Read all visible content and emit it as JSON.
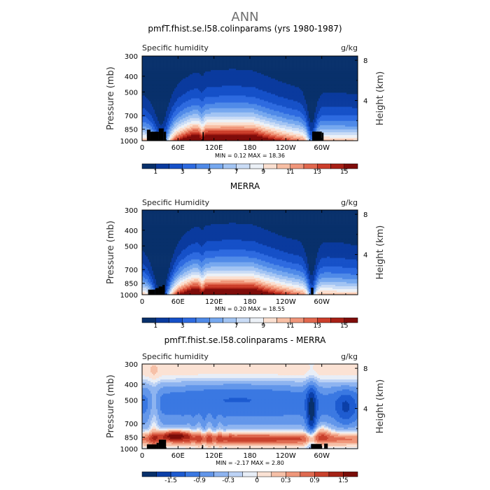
{
  "page_title": "ANN",
  "colors": {
    "seq": [
      "#08306b",
      "#0a3a9e",
      "#1550c8",
      "#2d6ae0",
      "#4f8ae8",
      "#76a8ef",
      "#a2c4f3",
      "#cadcf6",
      "#ecf1f7",
      "#fbe0d1",
      "#f8bfa4",
      "#f0967a",
      "#e1684e",
      "#cc3e2b",
      "#a82016",
      "#7f0c0a"
    ],
    "div": [
      "#08306b",
      "#0b3fa8",
      "#1d5bd0",
      "#3a78e2",
      "#6296ea",
      "#8eb4f0",
      "#bcd2f5",
      "#e8eef7",
      "#fbe2d4",
      "#f6c0a7",
      "#ef977a",
      "#df6a50",
      "#c9412c",
      "#a52316",
      "#7a0d09"
    ],
    "land": "#000000"
  },
  "chart_data": [
    {
      "type": "heatmap",
      "variant": "seq",
      "title": "pmfT.fhist.se.l58.colinparams (yrs 1980-1987)",
      "var_label": "Specific humidity",
      "units": "g/kg",
      "ylabel": "Pressure (mb)",
      "y2label": "Height (km)",
      "x_ticks": [
        "0",
        "60E",
        "120E",
        "180",
        "120W",
        "60W"
      ],
      "x_tick_lon": [
        0,
        60,
        120,
        180,
        240,
        300
      ],
      "xlim": [
        0,
        360
      ],
      "y_ticks": [
        "300",
        "400",
        "500",
        "700",
        "850",
        "1000"
      ],
      "y_tick_p": [
        300,
        400,
        500,
        700,
        850,
        1000
      ],
      "ylim": [
        300,
        1000
      ],
      "y2_ticks": [
        "8",
        "4"
      ],
      "y2_tick_km": [
        8,
        4
      ],
      "stats": "MIN =    0.12   MAX =   18.36",
      "colorbar_labels": [
        "1",
        "3",
        "5",
        "7",
        "9",
        "11",
        "13",
        "15"
      ],
      "land": [
        [
          8,
          14,
          855
        ],
        [
          14,
          28,
          880
        ],
        [
          28,
          36,
          840
        ],
        [
          36,
          40,
          880
        ],
        [
          101,
          103,
          885
        ],
        [
          284,
          300,
          878
        ],
        [
          300,
          303,
          892
        ]
      ]
    },
    {
      "type": "heatmap",
      "variant": "seq",
      "title": "MERRA",
      "var_label": "Specific Humidity",
      "units": "g/kg",
      "ylabel": "Pressure (mb)",
      "y2label": "Height (km)",
      "x_ticks": [
        "0",
        "60E",
        "120E",
        "180",
        "120W",
        "60W"
      ],
      "x_tick_lon": [
        0,
        60,
        120,
        180,
        240,
        300
      ],
      "xlim": [
        0,
        360
      ],
      "y_ticks": [
        "300",
        "400",
        "500",
        "700",
        "850",
        "1000"
      ],
      "y_tick_p": [
        300,
        400,
        500,
        700,
        850,
        1000
      ],
      "ylim": [
        300,
        1000
      ],
      "y2_ticks": [
        "8",
        "4"
      ],
      "y2_tick_km": [
        8,
        4
      ],
      "stats": "MIN =    0.20   MAX =   18.55",
      "colorbar_labels": [
        "1",
        "3",
        "5",
        "7",
        "9",
        "11",
        "13",
        "15"
      ],
      "land": [
        [
          10,
          22,
          930
        ],
        [
          22,
          28,
          910
        ],
        [
          28,
          34,
          890
        ],
        [
          34,
          38,
          870
        ],
        [
          100,
          102,
          960
        ],
        [
          282,
          286,
          905
        ]
      ]
    },
    {
      "type": "heatmap",
      "variant": "div",
      "title": "pmfT.fhist.se.l58.colinparams - MERRA",
      "var_label": "Specific humidity",
      "units": "g/kg",
      "ylabel": "Pressure (mb)",
      "y2label": "Height (km)",
      "x_ticks": [
        "0",
        "60E",
        "120E",
        "180",
        "120W",
        "60W"
      ],
      "x_tick_lon": [
        0,
        60,
        120,
        180,
        240,
        300
      ],
      "xlim": [
        0,
        360
      ],
      "y_ticks": [
        "300",
        "400",
        "500",
        "700",
        "850",
        "1000"
      ],
      "y_tick_p": [
        300,
        400,
        500,
        700,
        850,
        1000
      ],
      "ylim": [
        300,
        1000
      ],
      "y2_ticks": [
        "8",
        "4"
      ],
      "y2_tick_km": [
        8,
        4
      ],
      "stats": "MIN =   -2.17   MAX =    2.80",
      "colorbar_labels": [
        "-1.5",
        "-0.9",
        "-0.3",
        "0",
        "0.3",
        "0.9",
        "1.5"
      ],
      "land": [
        [
          8,
          24,
          940
        ],
        [
          24,
          28,
          920
        ],
        [
          28,
          40,
          880
        ],
        [
          100,
          102,
          950
        ],
        [
          282,
          300,
          935
        ],
        [
          304,
          310,
          930
        ]
      ]
    }
  ]
}
